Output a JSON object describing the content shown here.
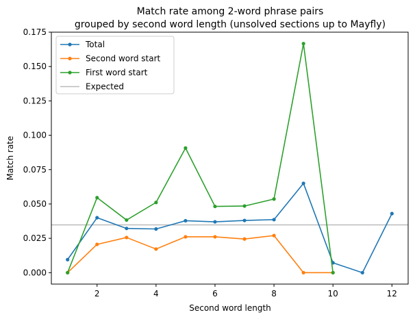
{
  "chart_data": {
    "type": "line",
    "title_line1": "Match rate among 2-word phrase pairs",
    "title_line2": "grouped by second word length (unsolved sections up to Mayfly)",
    "xlabel": "Second word length",
    "ylabel": "Match rate",
    "xlim": [
      0.45,
      12.55
    ],
    "ylim": [
      -0.0083,
      0.175
    ],
    "xticks": [
      2,
      4,
      6,
      8,
      10,
      12
    ],
    "xtick_labels": [
      "2",
      "4",
      "6",
      "8",
      "10",
      "12"
    ],
    "yticks": [
      0,
      0.025,
      0.05,
      0.075,
      0.1,
      0.125,
      0.15,
      0.175
    ],
    "ytick_labels": [
      "0.000",
      "0.025",
      "0.050",
      "0.075",
      "0.100",
      "0.125",
      "0.150",
      "0.175"
    ],
    "grid": false,
    "legend_position": "top-left",
    "series": [
      {
        "name": "Total",
        "color": "#1f77b4",
        "x": [
          1,
          2,
          3,
          4,
          5,
          6,
          7,
          8,
          9,
          10,
          11,
          12
        ],
        "y": [
          0.0095,
          0.04,
          0.0322,
          0.0318,
          0.0378,
          0.037,
          0.038,
          0.0386,
          0.065,
          0.0072,
          0.0,
          0.043
        ]
      },
      {
        "name": "Second word start",
        "color": "#ff7f0e",
        "x": [
          1,
          2,
          3,
          4,
          5,
          6,
          7,
          8,
          9,
          10
        ],
        "y": [
          0.0,
          0.0206,
          0.0256,
          0.0172,
          0.0261,
          0.0261,
          0.0245,
          0.027,
          0.0,
          0.0
        ]
      },
      {
        "name": "First word start",
        "color": "#2ca02c",
        "x": [
          1,
          2,
          3,
          4,
          5,
          6,
          7,
          8,
          9,
          10
        ],
        "y": [
          0.0,
          0.0546,
          0.0383,
          0.0511,
          0.0907,
          0.0482,
          0.0485,
          0.0536,
          0.1667,
          0.0
        ]
      }
    ],
    "reference_line": {
      "name": "Expected",
      "y": 0.0348,
      "color": "#bbbbbb"
    }
  }
}
